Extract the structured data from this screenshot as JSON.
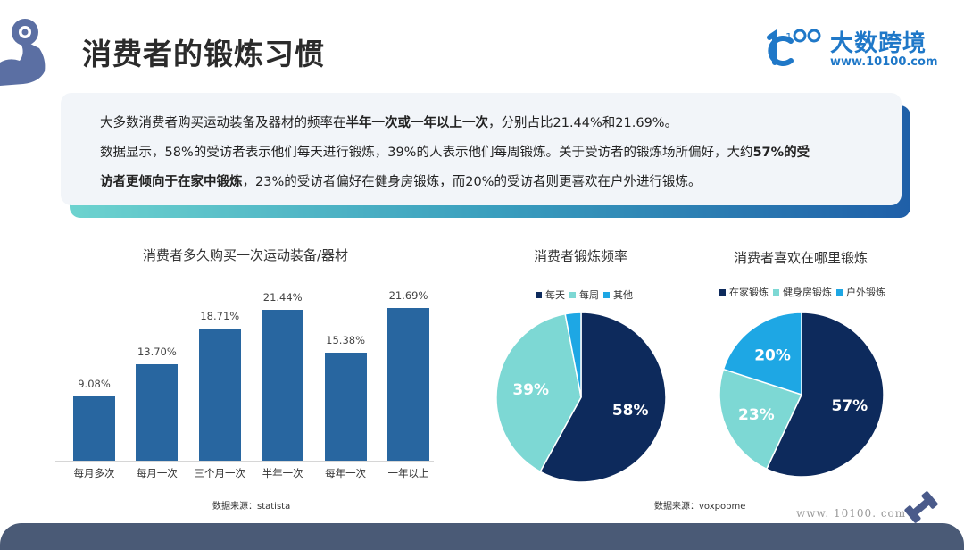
{
  "header": {
    "title": "消费者的锻炼习惯",
    "brand_name": "大数跨境",
    "brand_url": "www.10100.com"
  },
  "summary": {
    "line1_pre": "大多数消费者购买运动装备及器材的频率在",
    "line1_bold": "半年一次或一年以上一次",
    "line1_post": "，分别占比21.44%和21.69%。",
    "line2_pre": "数据显示，58%的受访者表示他们每天进行锻炼，39%的人表示他们每周锻炼。关于受访者的锻炼场所偏好，大约",
    "line2_bold": "57%的受",
    "line3_bold": "访者更倾向于在家中锻炼",
    "line3_post": "，23%的受访者偏好在健身房锻炼，而20%的受访者则更喜欢在户外进行锻炼。"
  },
  "chart_data": [
    {
      "type": "bar",
      "title": "消费者多久购买一次运动装备/器材",
      "categories": [
        "每月多次",
        "每月一次",
        "三个月一次",
        "半年一次",
        "每年一次",
        "一年以上"
      ],
      "values": [
        9.08,
        13.7,
        18.71,
        21.44,
        15.38,
        21.69
      ],
      "value_labels": [
        "9.08%",
        "13.70%",
        "18.71%",
        "21.44%",
        "15.38%",
        "21.69%"
      ],
      "xlabel": "",
      "ylabel": "",
      "ylim": [
        0,
        25
      ],
      "grid": false,
      "color": "#2866a0",
      "source": "数据来源：statista"
    },
    {
      "type": "pie",
      "title": "消费者锻炼频率",
      "labels": [
        "每天",
        "每周",
        "其他"
      ],
      "values": [
        58,
        39,
        3
      ],
      "value_labels": [
        "58%",
        "39%",
        ""
      ],
      "colors": [
        "#0d2a5c",
        "#7dd8d4",
        "#1ea7e4"
      ],
      "legend_position": "top",
      "source": "数据来源：voxpopme"
    },
    {
      "type": "pie",
      "title": "消费者喜欢在哪里锻炼",
      "labels": [
        "在家锻炼",
        "健身房锻炼",
        "户外锻炼"
      ],
      "values": [
        57,
        23,
        20
      ],
      "value_labels": [
        "57%",
        "23%",
        "20%"
      ],
      "colors": [
        "#0d2a5c",
        "#7dd8d4",
        "#1ea7e4"
      ],
      "legend_position": "top"
    }
  ],
  "footer": {
    "watermark": "www. 10100. com"
  },
  "icons": {
    "top_left": "flexed-arm-dumbbell-icon",
    "bottom_right": "dumbbell-icon"
  }
}
